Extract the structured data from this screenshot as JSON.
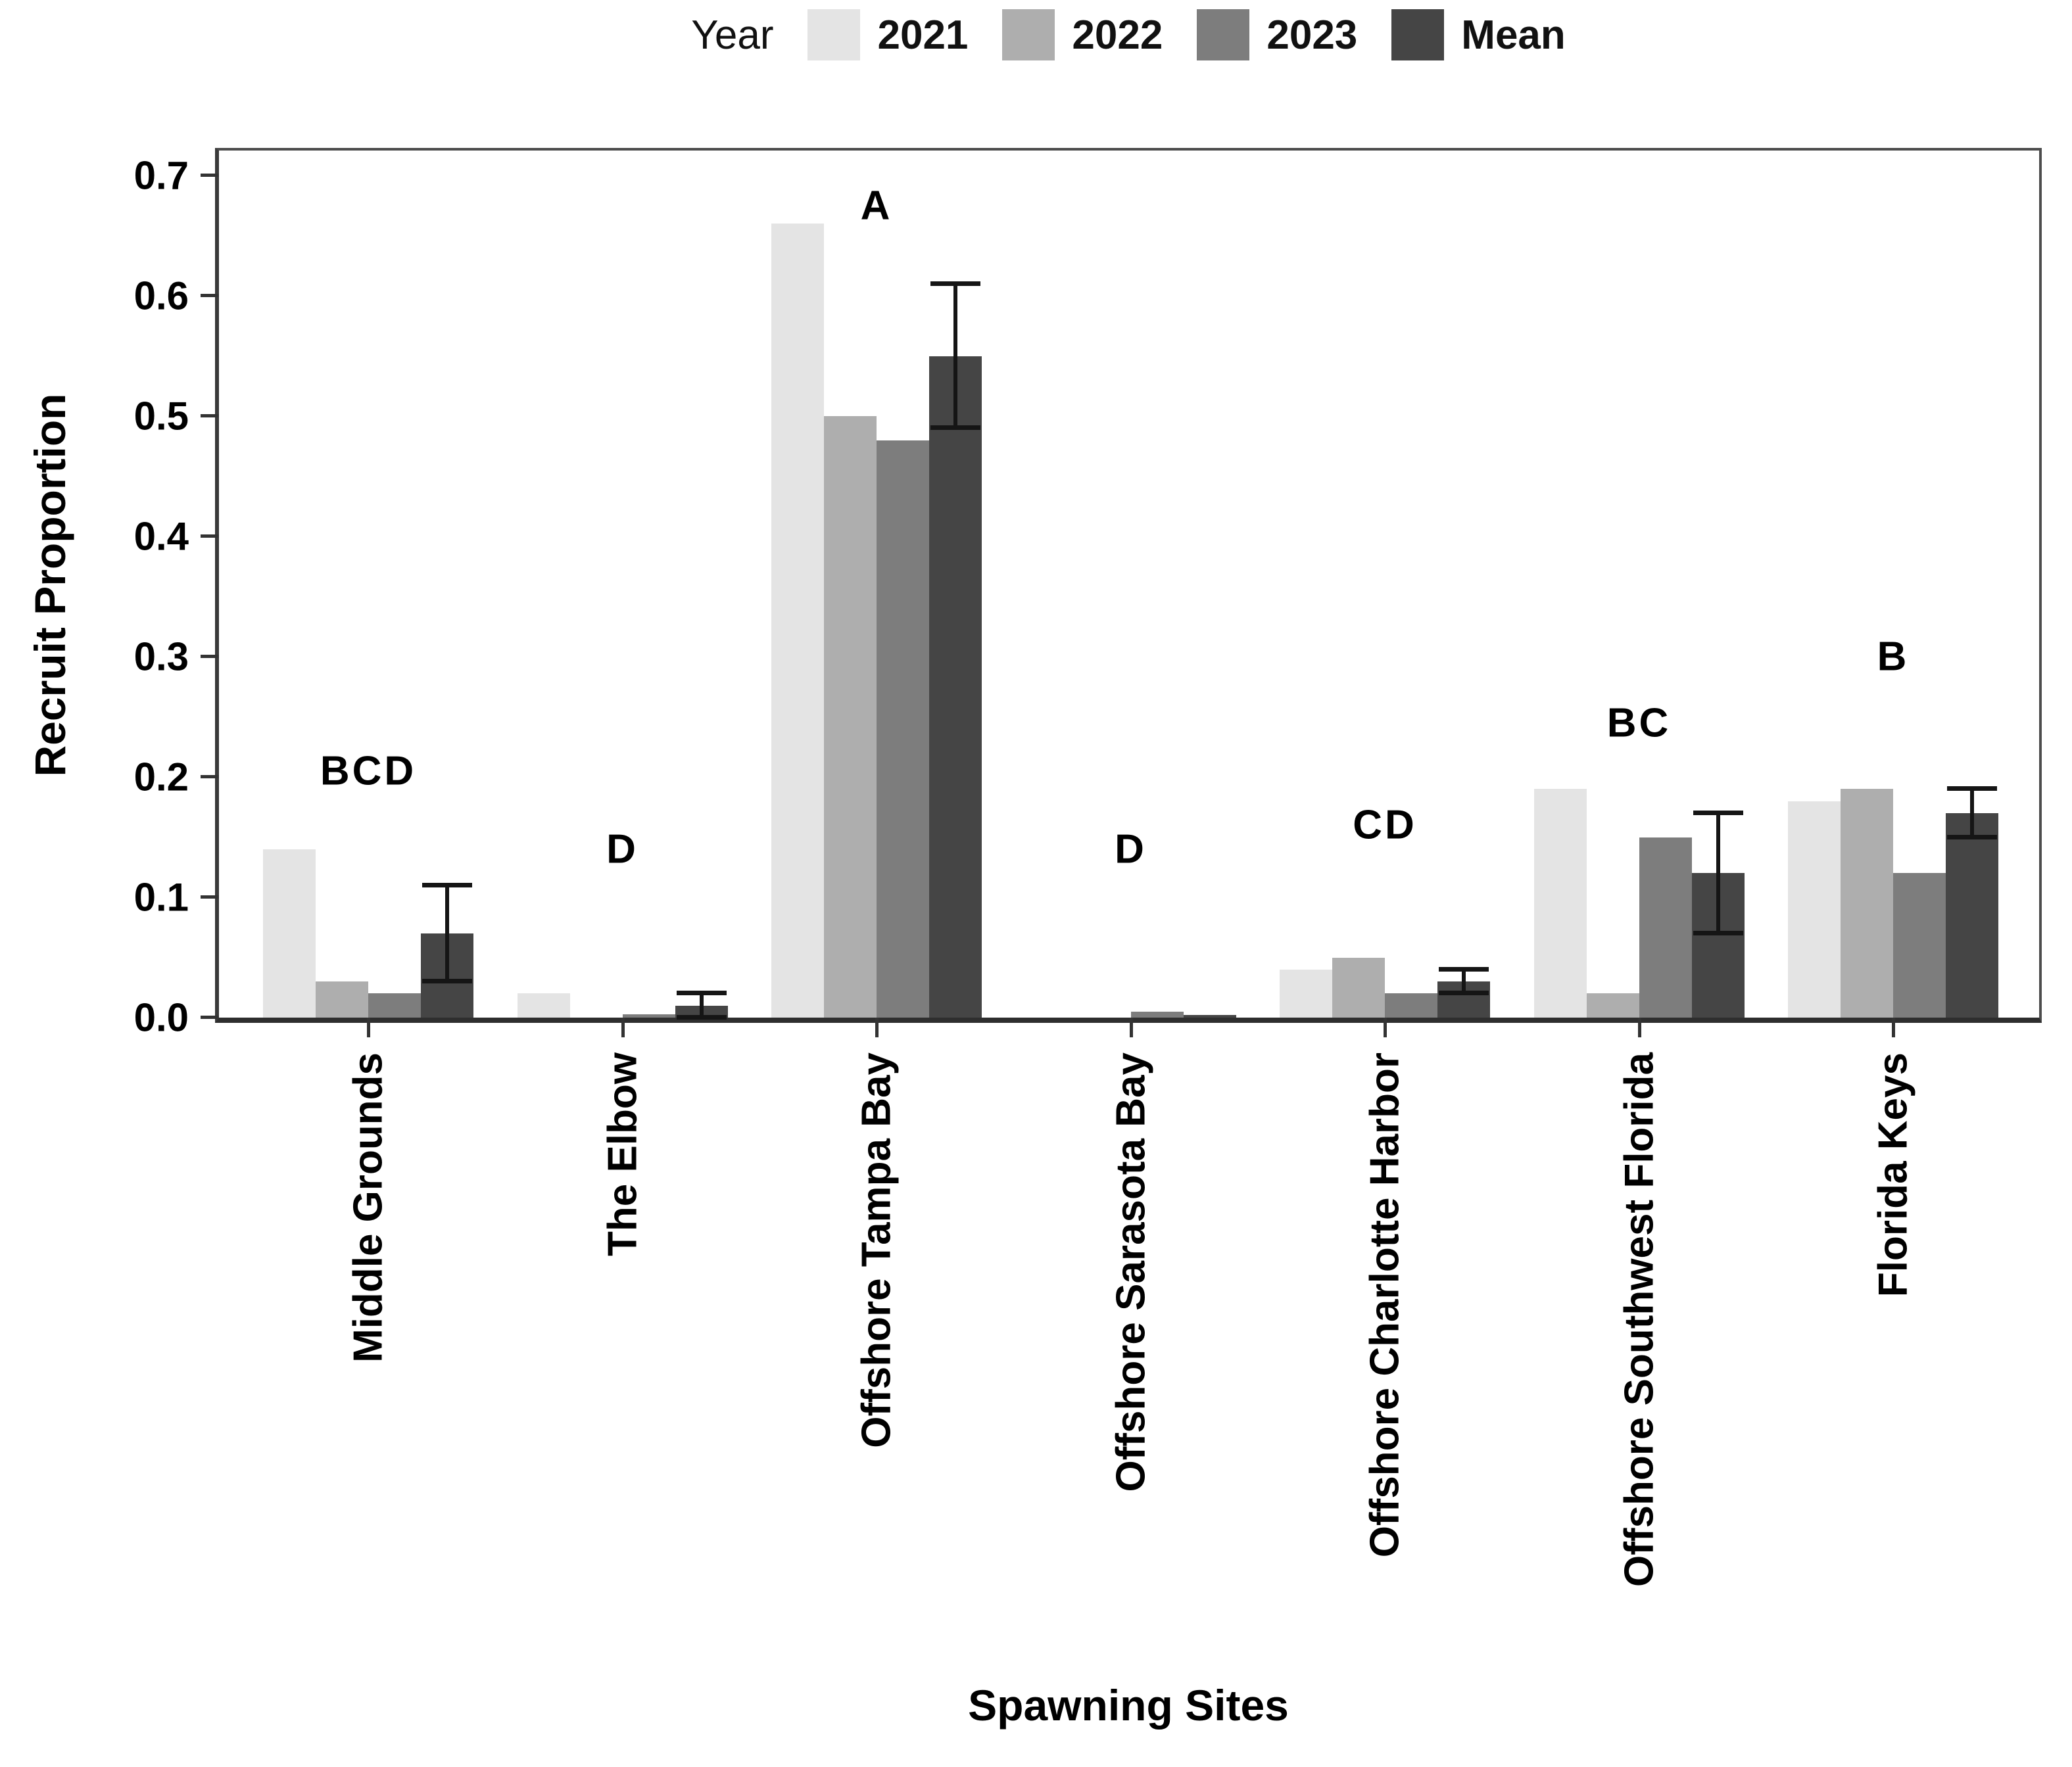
{
  "chart_data": {
    "type": "bar",
    "title": "",
    "legend_title": "Year",
    "legend_position": "top",
    "grid": false,
    "xlabel": "Spawning Sites",
    "ylabel": "Recruit Proportion",
    "ylim": [
      0,
      0.7
    ],
    "yticks": [
      "0.0",
      "0.1",
      "0.2",
      "0.3",
      "0.4",
      "0.5",
      "0.6",
      "0.7"
    ],
    "categories": [
      "Middle Grounds",
      "The Elbow",
      "Offshore Tampa Bay",
      "Offshore Sarasota Bay",
      "Offshore Charlotte Harbor",
      "Offshore Southwest Florida",
      "Florida Keys"
    ],
    "series": [
      {
        "name": "2021",
        "color": "#e4e4e4",
        "values": [
          0.14,
          0.02,
          0.66,
          0.0,
          0.04,
          0.19,
          0.18
        ]
      },
      {
        "name": "2022",
        "color": "#aeaeae",
        "values": [
          0.03,
          0.0,
          0.5,
          0.0,
          0.05,
          0.02,
          0.19
        ]
      },
      {
        "name": "2023",
        "color": "#7d7d7d",
        "values": [
          0.02,
          0.003,
          0.48,
          0.005,
          0.02,
          0.15,
          0.12
        ]
      },
      {
        "name": "Mean",
        "color": "#454545",
        "values": [
          0.07,
          0.01,
          0.55,
          0.002,
          0.03,
          0.12,
          0.17
        ]
      }
    ],
    "error_bars": [
      {
        "lo": 0.03,
        "hi": 0.11
      },
      {
        "lo": 0.0,
        "hi": 0.02
      },
      {
        "lo": 0.49,
        "hi": 0.61
      },
      null,
      {
        "lo": 0.02,
        "hi": 0.04
      },
      {
        "lo": 0.07,
        "hi": 0.17
      },
      {
        "lo": 0.15,
        "hi": 0.19
      }
    ],
    "significance_letters": [
      {
        "text": "BCD",
        "y": 0.205
      },
      {
        "text": "D",
        "y": 0.14
      },
      {
        "text": "A",
        "y": 0.675
      },
      {
        "text": "D",
        "y": 0.14
      },
      {
        "text": "CD",
        "y": 0.16
      },
      {
        "text": "BC",
        "y": 0.245
      },
      {
        "text": "B",
        "y": 0.3
      }
    ],
    "axis_color": "#333333",
    "error_bar_color": "#151515"
  }
}
